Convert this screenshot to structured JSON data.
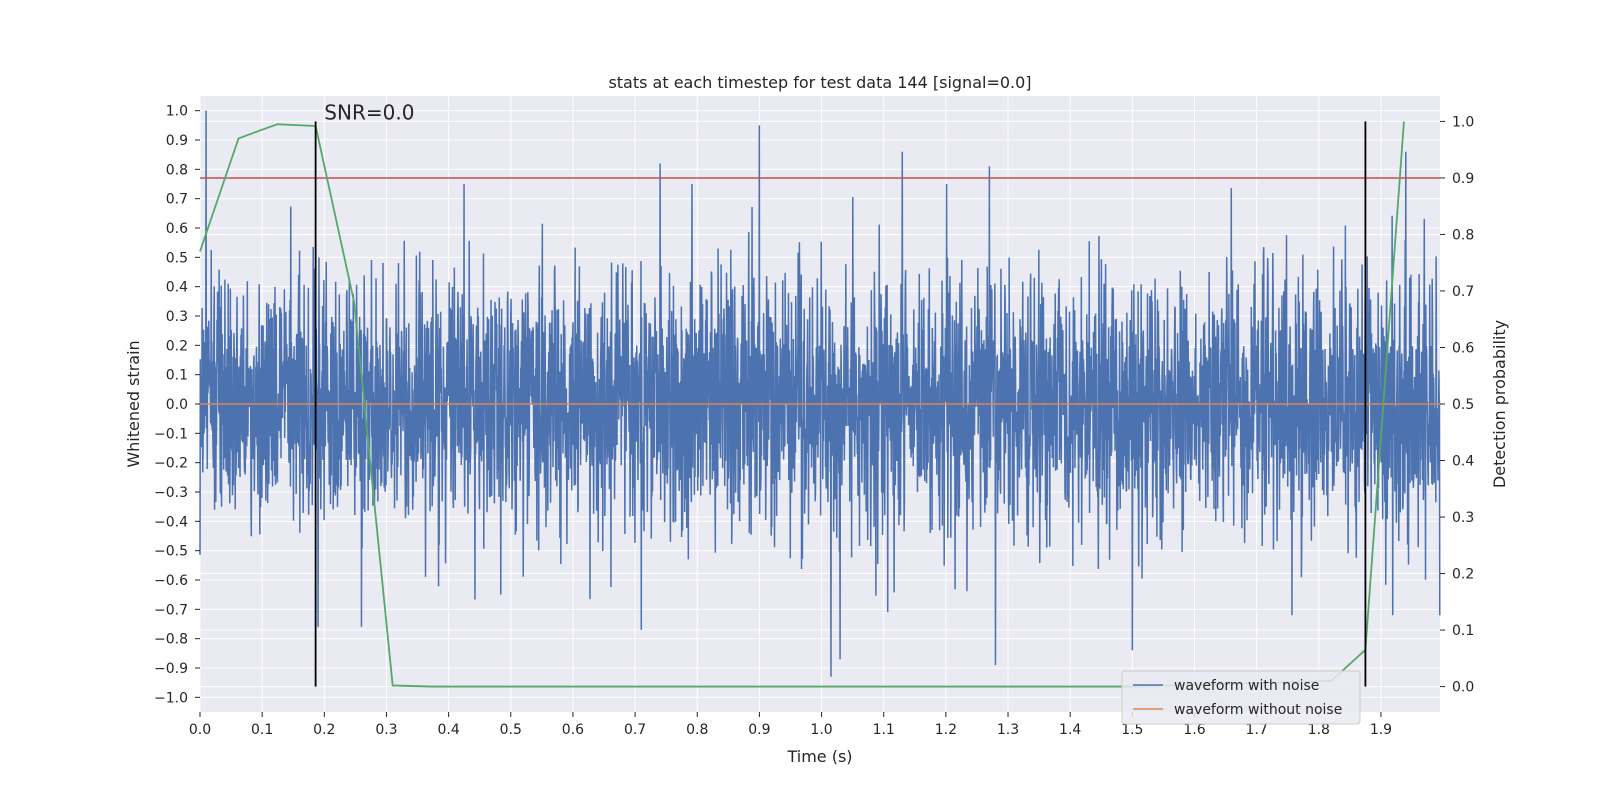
{
  "chart_data": {
    "type": "line",
    "title": "stats at each timestep for test data 144 [signal=0.0]",
    "xlabel": "Time (s)",
    "ylabel": "Whitened strain",
    "y2label": "Detection probability",
    "xlim": [
      0.0,
      1.995
    ],
    "ylim": [
      -1.05,
      1.05
    ],
    "y2lim": [
      -0.045,
      1.045
    ],
    "xticks": [
      0.0,
      0.1,
      0.2,
      0.3,
      0.4,
      0.5,
      0.6,
      0.7,
      0.8,
      0.9,
      1.0,
      1.1,
      1.2,
      1.3,
      1.4,
      1.5,
      1.6,
      1.7,
      1.8,
      1.9
    ],
    "xtick_labels": [
      "0.0",
      "0.1",
      "0.2",
      "0.3",
      "0.4",
      "0.5",
      "0.6",
      "0.7",
      "0.8",
      "0.9",
      "1.0",
      "1.1",
      "1.2",
      "1.3",
      "1.4",
      "1.5",
      "1.6",
      "1.7",
      "1.8",
      "1.9"
    ],
    "yticks": [
      1.0,
      0.9,
      0.8,
      0.7,
      0.6,
      0.5,
      0.4,
      0.3,
      0.2,
      0.1,
      0.0,
      -0.1,
      -0.2,
      -0.3,
      -0.4,
      -0.5,
      -0.6,
      -0.7,
      -0.8,
      -0.9,
      -1.0
    ],
    "ytick_labels": [
      "1.0",
      "0.9",
      "0.8",
      "0.7",
      "0.6",
      "0.5",
      "0.4",
      "0.3",
      "0.2",
      "0.1",
      "0.0",
      "−0.1",
      "−0.2",
      "−0.3",
      "−0.4",
      "−0.5",
      "−0.6",
      "−0.7",
      "−0.8",
      "−0.9",
      "−1.0"
    ],
    "y2ticks": [
      1.0,
      0.9,
      0.8,
      0.7,
      0.6,
      0.5,
      0.4,
      0.3,
      0.2,
      0.1,
      0.0
    ],
    "y2tick_labels": [
      "1.0",
      "0.9",
      "0.8",
      "0.7",
      "0.6",
      "0.5",
      "0.4",
      "0.3",
      "0.2",
      "0.1",
      "0.0"
    ],
    "grid": true,
    "legend_position": "bottom-right",
    "series": [
      {
        "name": "waveform with noise",
        "color": "#4c72b0",
        "axis": "left",
        "sample_rate_hz": 2048,
        "duration_s": 2.0,
        "std": 0.22,
        "seed": 144,
        "spikes": [
          {
            "x": 0.01,
            "y": 1.0
          },
          {
            "x": 0.9,
            "y": 0.95
          },
          {
            "x": 1.13,
            "y": 0.86
          },
          {
            "x": 1.94,
            "y": 0.86
          },
          {
            "x": 0.74,
            "y": 0.82
          },
          {
            "x": 1.27,
            "y": 0.81
          },
          {
            "x": 1.015,
            "y": -0.93
          },
          {
            "x": 1.28,
            "y": -0.89
          },
          {
            "x": 1.03,
            "y": -0.87
          },
          {
            "x": 1.5,
            "y": -0.84
          },
          {
            "x": 0.19,
            "y": -0.76
          },
          {
            "x": 0.26,
            "y": -0.76
          },
          {
            "x": 0.71,
            "y": -0.77
          }
        ]
      },
      {
        "name": "waveform without noise",
        "color": "#dd8452",
        "axis": "left",
        "x": [
          0.0,
          1.995
        ],
        "y": [
          0.0,
          0.0
        ]
      },
      {
        "name": "detection probability",
        "color": "#55a868",
        "axis": "right",
        "x": [
          0.0,
          0.062,
          0.124,
          0.186,
          0.248,
          0.31,
          0.372,
          1.5,
          1.82,
          1.875,
          1.937
        ],
        "y": [
          0.77,
          0.97,
          0.995,
          0.992,
          0.68,
          0.002,
          0.0,
          0.0,
          0.01,
          0.065,
          1.0
        ]
      }
    ],
    "threshold": {
      "axis": "right",
      "y": 0.9,
      "color": "#c44e52"
    },
    "vlines": [
      {
        "x": 0.186,
        "color": "#000000"
      },
      {
        "x": 1.875,
        "color": "#000000"
      }
    ],
    "annotation": {
      "text": "SNR=0.0",
      "x": 0.2,
      "y": 1.0
    },
    "legend_entries": [
      {
        "label": "waveform with noise",
        "color": "#4c72b0"
      },
      {
        "label": "waveform without noise",
        "color": "#dd8452"
      }
    ]
  }
}
